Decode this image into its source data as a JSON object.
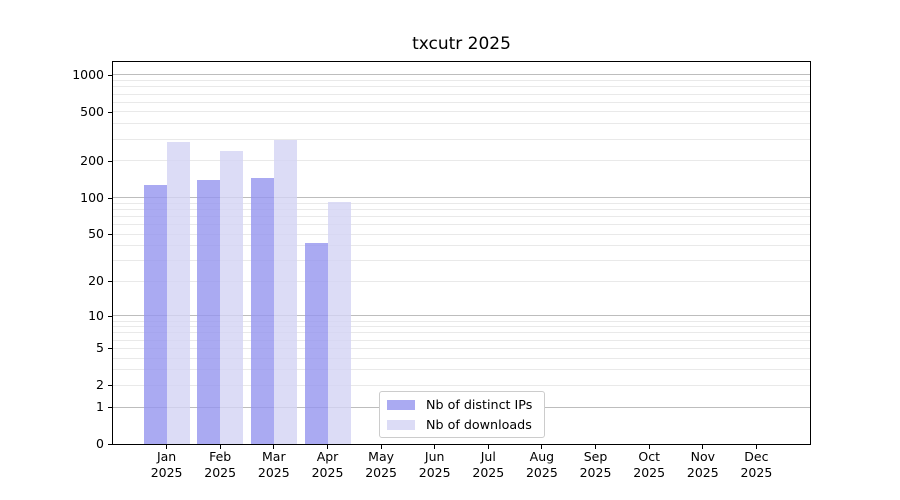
{
  "title": "txcutr 2025",
  "chart_data": {
    "type": "bar",
    "title": "txcutr 2025",
    "y_scale": "log10(1+value), linear spacing per decade; 0 at baseline",
    "categories": [
      "Jan",
      "Feb",
      "Mar",
      "Apr",
      "May",
      "Jun",
      "Jul",
      "Aug",
      "Sep",
      "Oct",
      "Nov",
      "Dec"
    ],
    "year_label": "2025",
    "series": [
      {
        "name": "Nb of distinct IPs",
        "color": "#9595ef",
        "values": [
          127,
          138,
          145,
          42,
          0,
          0,
          0,
          0,
          0,
          0,
          0,
          0
        ]
      },
      {
        "name": "Nb of downloads",
        "color": "#d3d3f4",
        "values": [
          285,
          240,
          296,
          92,
          0,
          0,
          0,
          0,
          0,
          0,
          0,
          0
        ]
      }
    ],
    "bar_opacity": 0.8,
    "y_ticks": [
      0,
      1,
      2,
      5,
      10,
      20,
      50,
      100,
      200,
      500,
      1000
    ],
    "ylim": [
      0,
      1274
    ],
    "xlabel": "",
    "ylabel": "",
    "grid": {
      "major": [
        1,
        10,
        100,
        1000
      ],
      "minor": [
        2,
        3,
        4,
        5,
        6,
        7,
        8,
        9,
        20,
        30,
        40,
        50,
        60,
        70,
        80,
        90,
        200,
        300,
        400,
        500,
        600,
        700,
        800,
        900
      ],
      "major_color": "#bdbdbd",
      "minor_color": "#e9e9e9"
    },
    "legend": {
      "position": "lower center",
      "entries": [
        "Nb of distinct IPs",
        "Nb of downloads"
      ]
    }
  }
}
